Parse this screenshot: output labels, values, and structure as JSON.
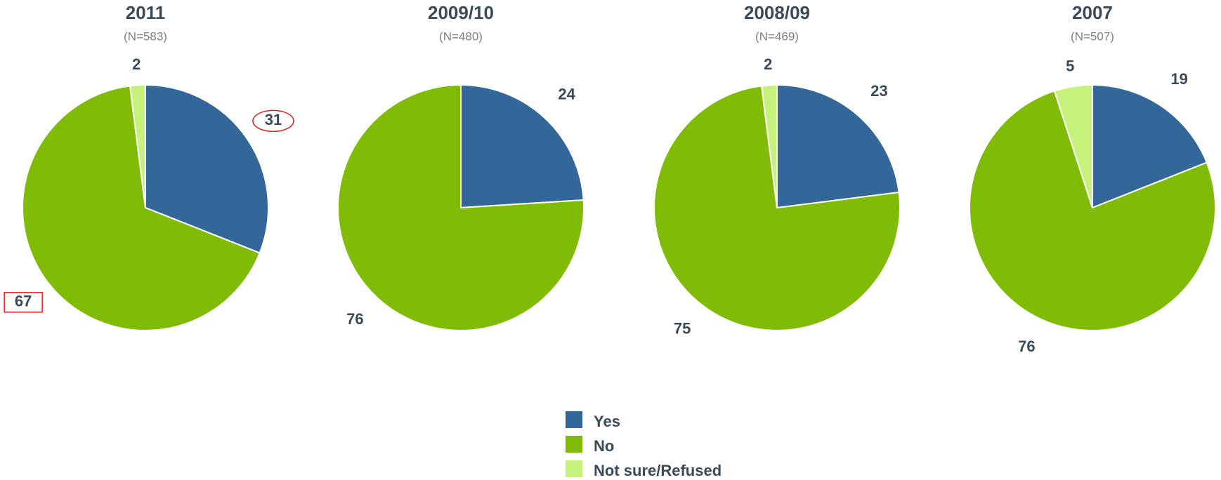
{
  "chart_data": [
    {
      "type": "pie",
      "title": "2011",
      "subtitle": "(N=583)",
      "categories": [
        "Yes",
        "No",
        "Not sure/Refused"
      ],
      "values": [
        31,
        67,
        2
      ],
      "colors": [
        "#336699",
        "#80bc06",
        "#c6f27c"
      ]
    },
    {
      "type": "pie",
      "title": "2009/10",
      "subtitle": "(N=480)",
      "categories": [
        "Yes",
        "No"
      ],
      "values": [
        24,
        76
      ],
      "colors": [
        "#336699",
        "#80bc06"
      ]
    },
    {
      "type": "pie",
      "title": "2008/09",
      "subtitle": "(N=469)",
      "categories": [
        "Yes",
        "No",
        "Not sure/Refused"
      ],
      "values": [
        23,
        75,
        2
      ],
      "colors": [
        "#336699",
        "#80bc06",
        "#c6f27c"
      ]
    },
    {
      "type": "pie",
      "title": "2007",
      "subtitle": "(N=507)",
      "categories": [
        "Yes",
        "No",
        "Not sure/Refused"
      ],
      "values": [
        19,
        76,
        5
      ],
      "colors": [
        "#336699",
        "#80bc06",
        "#c6f27c"
      ]
    }
  ]
}
